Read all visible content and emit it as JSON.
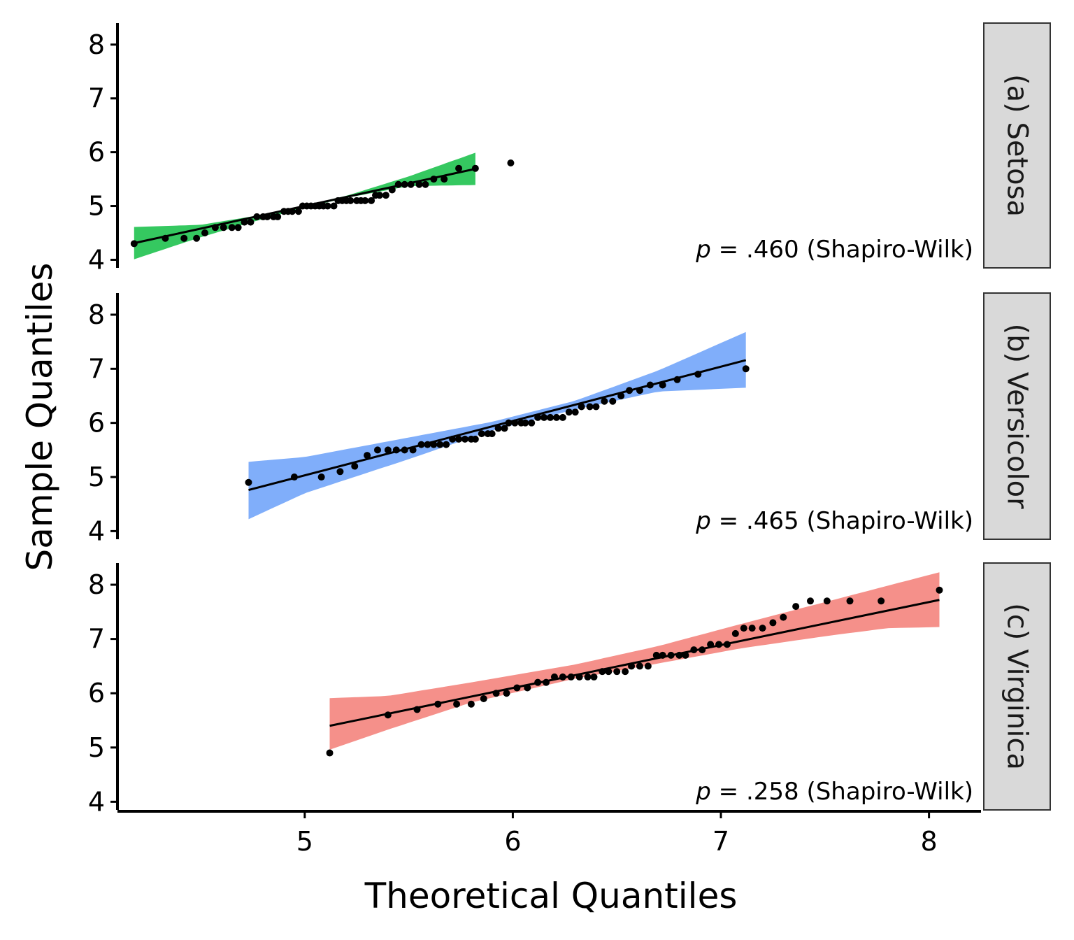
{
  "chart_data": {
    "type": "scatter",
    "subtype": "qq-plot-faceted",
    "xlabel": "Theoretical Quantiles",
    "ylabel": "Sample Quantiles",
    "xticks": [
      5,
      6,
      7,
      8
    ],
    "yticks": [
      4,
      5,
      6,
      7,
      8
    ],
    "xlim": [
      4.1,
      8.25
    ],
    "ylim": [
      3.85,
      8.4
    ],
    "grid": false,
    "facets": [
      {
        "strip_label": "(a) Setosa",
        "annotation_p": "p",
        "annotation_rest": " = .460 (Shapiro-Wilk)",
        "band_color": "#35c860",
        "line": {
          "x": [
            4.18,
            5.82
          ],
          "y": [
            4.31,
            5.69
          ]
        },
        "band": {
          "x": [
            4.18,
            4.5,
            4.8,
            5.0,
            5.2,
            5.5,
            5.82
          ],
          "lower": [
            4.01,
            4.42,
            4.76,
            4.97,
            5.15,
            5.37,
            5.39
          ],
          "upper": [
            4.61,
            4.65,
            4.84,
            5.01,
            5.19,
            5.55,
            5.99
          ]
        },
        "points": [
          [
            4.18,
            4.3
          ],
          [
            4.33,
            4.4
          ],
          [
            4.42,
            4.4
          ],
          [
            4.48,
            4.4
          ],
          [
            4.52,
            4.5
          ],
          [
            4.57,
            4.6
          ],
          [
            4.61,
            4.6
          ],
          [
            4.65,
            4.6
          ],
          [
            4.68,
            4.6
          ],
          [
            4.71,
            4.7
          ],
          [
            4.74,
            4.7
          ],
          [
            4.77,
            4.8
          ],
          [
            4.8,
            4.8
          ],
          [
            4.82,
            4.8
          ],
          [
            4.85,
            4.8
          ],
          [
            4.87,
            4.8
          ],
          [
            4.9,
            4.9
          ],
          [
            4.92,
            4.9
          ],
          [
            4.94,
            4.9
          ],
          [
            4.97,
            4.9
          ],
          [
            4.99,
            5.0
          ],
          [
            5.01,
            5.0
          ],
          [
            5.03,
            5.0
          ],
          [
            5.05,
            5.0
          ],
          [
            5.07,
            5.0
          ],
          [
            5.09,
            5.0
          ],
          [
            5.11,
            5.0
          ],
          [
            5.14,
            5.0
          ],
          [
            5.16,
            5.1
          ],
          [
            5.18,
            5.1
          ],
          [
            5.2,
            5.1
          ],
          [
            5.22,
            5.1
          ],
          [
            5.25,
            5.1
          ],
          [
            5.27,
            5.1
          ],
          [
            5.29,
            5.1
          ],
          [
            5.32,
            5.1
          ],
          [
            5.34,
            5.2
          ],
          [
            5.36,
            5.2
          ],
          [
            5.39,
            5.2
          ],
          [
            5.42,
            5.3
          ],
          [
            5.45,
            5.4
          ],
          [
            5.48,
            5.4
          ],
          [
            5.51,
            5.4
          ],
          [
            5.55,
            5.4
          ],
          [
            5.58,
            5.4
          ],
          [
            5.62,
            5.5
          ],
          [
            5.67,
            5.5
          ],
          [
            5.74,
            5.7
          ],
          [
            5.82,
            5.7
          ],
          [
            5.99,
            5.8
          ]
        ]
      },
      {
        "strip_label": "(b) Versicolor",
        "annotation_p": "p",
        "annotation_rest": " = .465 (Shapiro-Wilk)",
        "band_color": "#80aefa",
        "line": {
          "x": [
            4.73,
            7.12
          ],
          "y": [
            4.76,
            7.16
          ]
        },
        "band": {
          "x": [
            4.73,
            5.0,
            5.5,
            5.9,
            6.3,
            6.7,
            7.12
          ],
          "lower": [
            4.22,
            4.7,
            5.33,
            5.86,
            6.25,
            6.58,
            6.65
          ],
          "upper": [
            5.28,
            5.37,
            5.73,
            6.02,
            6.41,
            6.97,
            7.68
          ]
        },
        "points": [
          [
            4.73,
            4.9
          ],
          [
            4.95,
            5.0
          ],
          [
            5.08,
            5.0
          ],
          [
            5.17,
            5.1
          ],
          [
            5.24,
            5.2
          ],
          [
            5.3,
            5.4
          ],
          [
            5.35,
            5.5
          ],
          [
            5.4,
            5.5
          ],
          [
            5.44,
            5.5
          ],
          [
            5.48,
            5.5
          ],
          [
            5.52,
            5.5
          ],
          [
            5.56,
            5.6
          ],
          [
            5.59,
            5.6
          ],
          [
            5.62,
            5.6
          ],
          [
            5.65,
            5.6
          ],
          [
            5.68,
            5.6
          ],
          [
            5.71,
            5.7
          ],
          [
            5.74,
            5.7
          ],
          [
            5.77,
            5.7
          ],
          [
            5.8,
            5.7
          ],
          [
            5.82,
            5.7
          ],
          [
            5.85,
            5.8
          ],
          [
            5.88,
            5.8
          ],
          [
            5.9,
            5.8
          ],
          [
            5.93,
            5.9
          ],
          [
            5.96,
            5.9
          ],
          [
            5.98,
            6.0
          ],
          [
            6.01,
            6.0
          ],
          [
            6.04,
            6.0
          ],
          [
            6.06,
            6.0
          ],
          [
            6.09,
            6.0
          ],
          [
            6.12,
            6.1
          ],
          [
            6.15,
            6.1
          ],
          [
            6.18,
            6.1
          ],
          [
            6.21,
            6.1
          ],
          [
            6.24,
            6.1
          ],
          [
            6.27,
            6.2
          ],
          [
            6.3,
            6.2
          ],
          [
            6.33,
            6.3
          ],
          [
            6.37,
            6.3
          ],
          [
            6.4,
            6.3
          ],
          [
            6.44,
            6.4
          ],
          [
            6.48,
            6.4
          ],
          [
            6.52,
            6.5
          ],
          [
            6.56,
            6.6
          ],
          [
            6.61,
            6.6
          ],
          [
            6.66,
            6.7
          ],
          [
            6.72,
            6.7
          ],
          [
            6.79,
            6.8
          ],
          [
            6.89,
            6.9
          ],
          [
            7.12,
            7.0
          ]
        ]
      },
      {
        "strip_label": "(c) Virginica",
        "annotation_p": "p",
        "annotation_rest": " = .258 (Shapiro-Wilk)",
        "band_color": "#f5908a",
        "line": {
          "x": [
            5.12,
            8.05
          ],
          "y": [
            5.4,
            7.72
          ]
        },
        "band": {
          "x": [
            5.12,
            5.4,
            5.8,
            6.3,
            6.7,
            7.1,
            7.5,
            7.8,
            8.05
          ],
          "lower": [
            4.96,
            5.33,
            5.83,
            6.27,
            6.55,
            6.83,
            7.05,
            7.2,
            7.22
          ],
          "upper": [
            5.91,
            5.95,
            6.2,
            6.53,
            6.87,
            7.28,
            7.68,
            7.98,
            8.23
          ]
        },
        "points": [
          [
            5.12,
            4.9
          ],
          [
            5.4,
            5.6
          ],
          [
            5.54,
            5.7
          ],
          [
            5.64,
            5.8
          ],
          [
            5.73,
            5.8
          ],
          [
            5.8,
            5.8
          ],
          [
            5.86,
            5.9
          ],
          [
            5.92,
            6.0
          ],
          [
            5.97,
            6.0
          ],
          [
            6.02,
            6.1
          ],
          [
            6.07,
            6.1
          ],
          [
            6.12,
            6.2
          ],
          [
            6.16,
            6.2
          ],
          [
            6.2,
            6.3
          ],
          [
            6.24,
            6.3
          ],
          [
            6.28,
            6.3
          ],
          [
            6.32,
            6.3
          ],
          [
            6.36,
            6.3
          ],
          [
            6.39,
            6.3
          ],
          [
            6.43,
            6.4
          ],
          [
            6.46,
            6.4
          ],
          [
            6.5,
            6.4
          ],
          [
            6.54,
            6.4
          ],
          [
            6.57,
            6.5
          ],
          [
            6.61,
            6.5
          ],
          [
            6.65,
            6.5
          ],
          [
            6.69,
            6.7
          ],
          [
            6.72,
            6.7
          ],
          [
            6.76,
            6.7
          ],
          [
            6.8,
            6.7
          ],
          [
            6.83,
            6.7
          ],
          [
            6.87,
            6.8
          ],
          [
            6.91,
            6.8
          ],
          [
            6.95,
            6.9
          ],
          [
            6.99,
            6.9
          ],
          [
            7.03,
            6.9
          ],
          [
            7.07,
            7.1
          ],
          [
            7.11,
            7.2
          ],
          [
            7.15,
            7.2
          ],
          [
            7.2,
            7.2
          ],
          [
            7.25,
            7.3
          ],
          [
            7.3,
            7.4
          ],
          [
            7.36,
            7.6
          ],
          [
            7.43,
            7.7
          ],
          [
            7.51,
            7.7
          ],
          [
            7.62,
            7.7
          ],
          [
            7.77,
            7.7
          ],
          [
            8.05,
            7.9
          ]
        ]
      }
    ]
  }
}
